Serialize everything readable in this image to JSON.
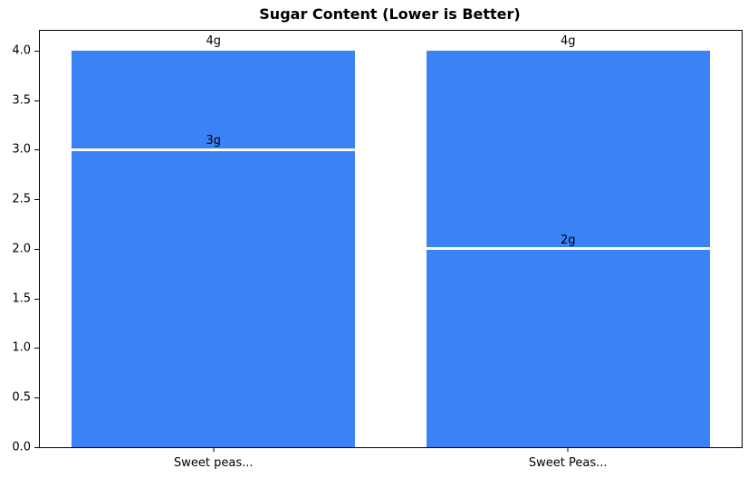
{
  "chart_data": {
    "type": "bar",
    "title": "Sugar Content (Lower is Better)",
    "categories": [
      "Sweet peas...",
      "Sweet Peas..."
    ],
    "series": [
      {
        "name": "sugar-total-bar",
        "values": [
          4,
          4
        ],
        "data_labels": [
          "4g",
          "4g"
        ]
      },
      {
        "name": "sugar-marker-line",
        "values": [
          3,
          2
        ],
        "data_labels": [
          "3g",
          "2g"
        ]
      }
    ],
    "xlabel": "",
    "ylabel": "",
    "ylim": [
      0,
      4.2
    ],
    "xlim": [
      -0.49,
      1.49
    ],
    "bar_width": 0.8,
    "ytick_values": [
      0,
      0.5,
      1,
      1.5,
      2,
      2.5,
      3,
      3.5,
      4
    ],
    "ytick_labels": [
      "0.0",
      "0.5",
      "1.0",
      "1.5",
      "2.0",
      "2.5",
      "3.0",
      "3.5",
      "4.0"
    ],
    "grid": false,
    "legend": "none",
    "colors": {
      "bar": "#3b82f6",
      "marker_line": "#ffffff",
      "text": "#000000",
      "spine": "#000000",
      "background": "#ffffff"
    }
  }
}
